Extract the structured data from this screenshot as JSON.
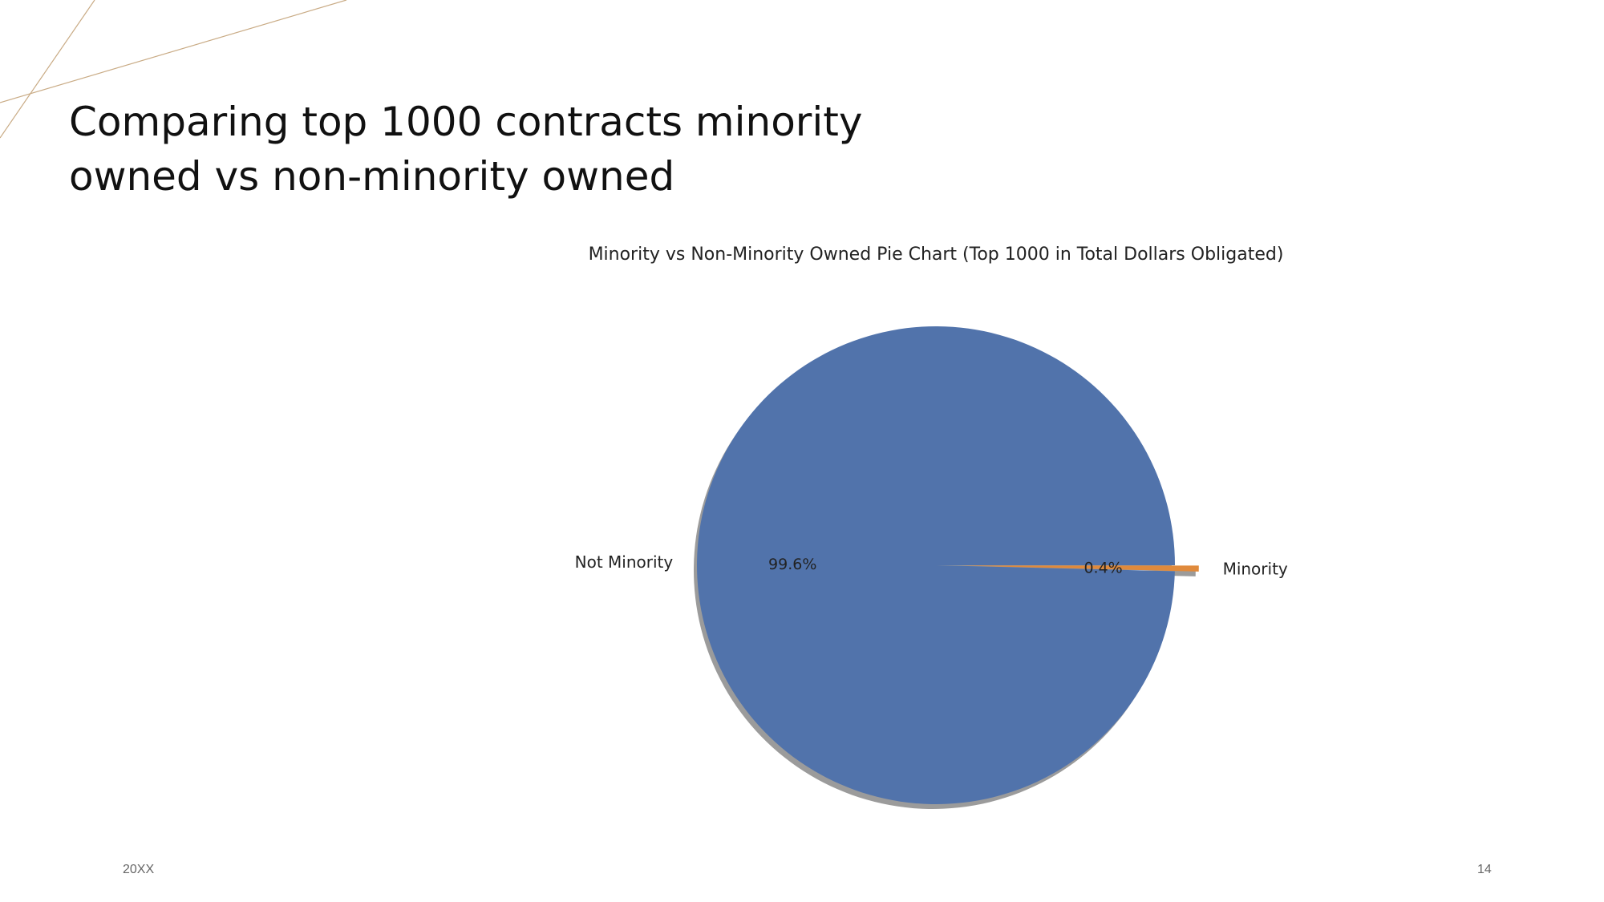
{
  "slide": {
    "title_line1": "Comparing top 1000 contracts minority",
    "title_line2": "owned vs non-minority owned",
    "footer_left": "20XX",
    "footer_right": "14"
  },
  "colors": {
    "accent_line": "#c9ab85",
    "not_minority": "#5173ab",
    "minority": "#e08a3c",
    "shadow": "#8a8a8a"
  },
  "chart_data": {
    "type": "pie",
    "title": "Minority vs Non-Minority Owned Pie Chart (Top 1000 in Total Dollars Obligated)",
    "categories": [
      "Not Minority",
      "Minority"
    ],
    "values": [
      99.6,
      0.4
    ],
    "value_labels": [
      "99.6%",
      "0.4%"
    ],
    "shadow": true,
    "explode": [
      0,
      0.1
    ],
    "legend": "none"
  }
}
